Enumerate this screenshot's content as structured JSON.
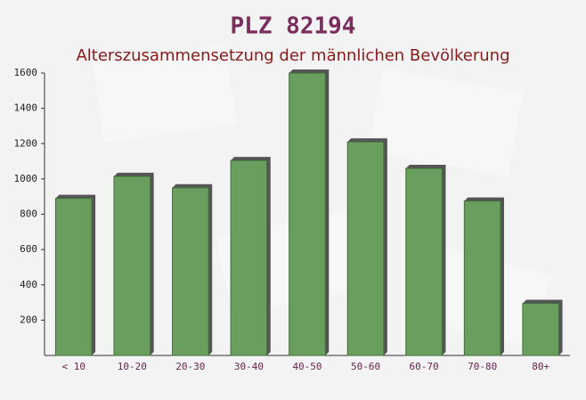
{
  "chart_data": {
    "type": "bar",
    "title": "PLZ 82194",
    "subtitle": "Alterszusammensetzung der männlichen Bevölkerung",
    "categories": [
      "< 10",
      "10-20",
      "20-30",
      "30-40",
      "40-50",
      "50-60",
      "60-70",
      "70-80",
      "80+"
    ],
    "values": [
      890,
      1015,
      950,
      1105,
      1600,
      1210,
      1060,
      875,
      295
    ],
    "color": "#6a9e5e",
    "ylim": [
      0,
      1600
    ],
    "yticks": [
      200,
      400,
      600,
      800,
      1000,
      1200,
      1400,
      1600
    ],
    "grid": false
  }
}
